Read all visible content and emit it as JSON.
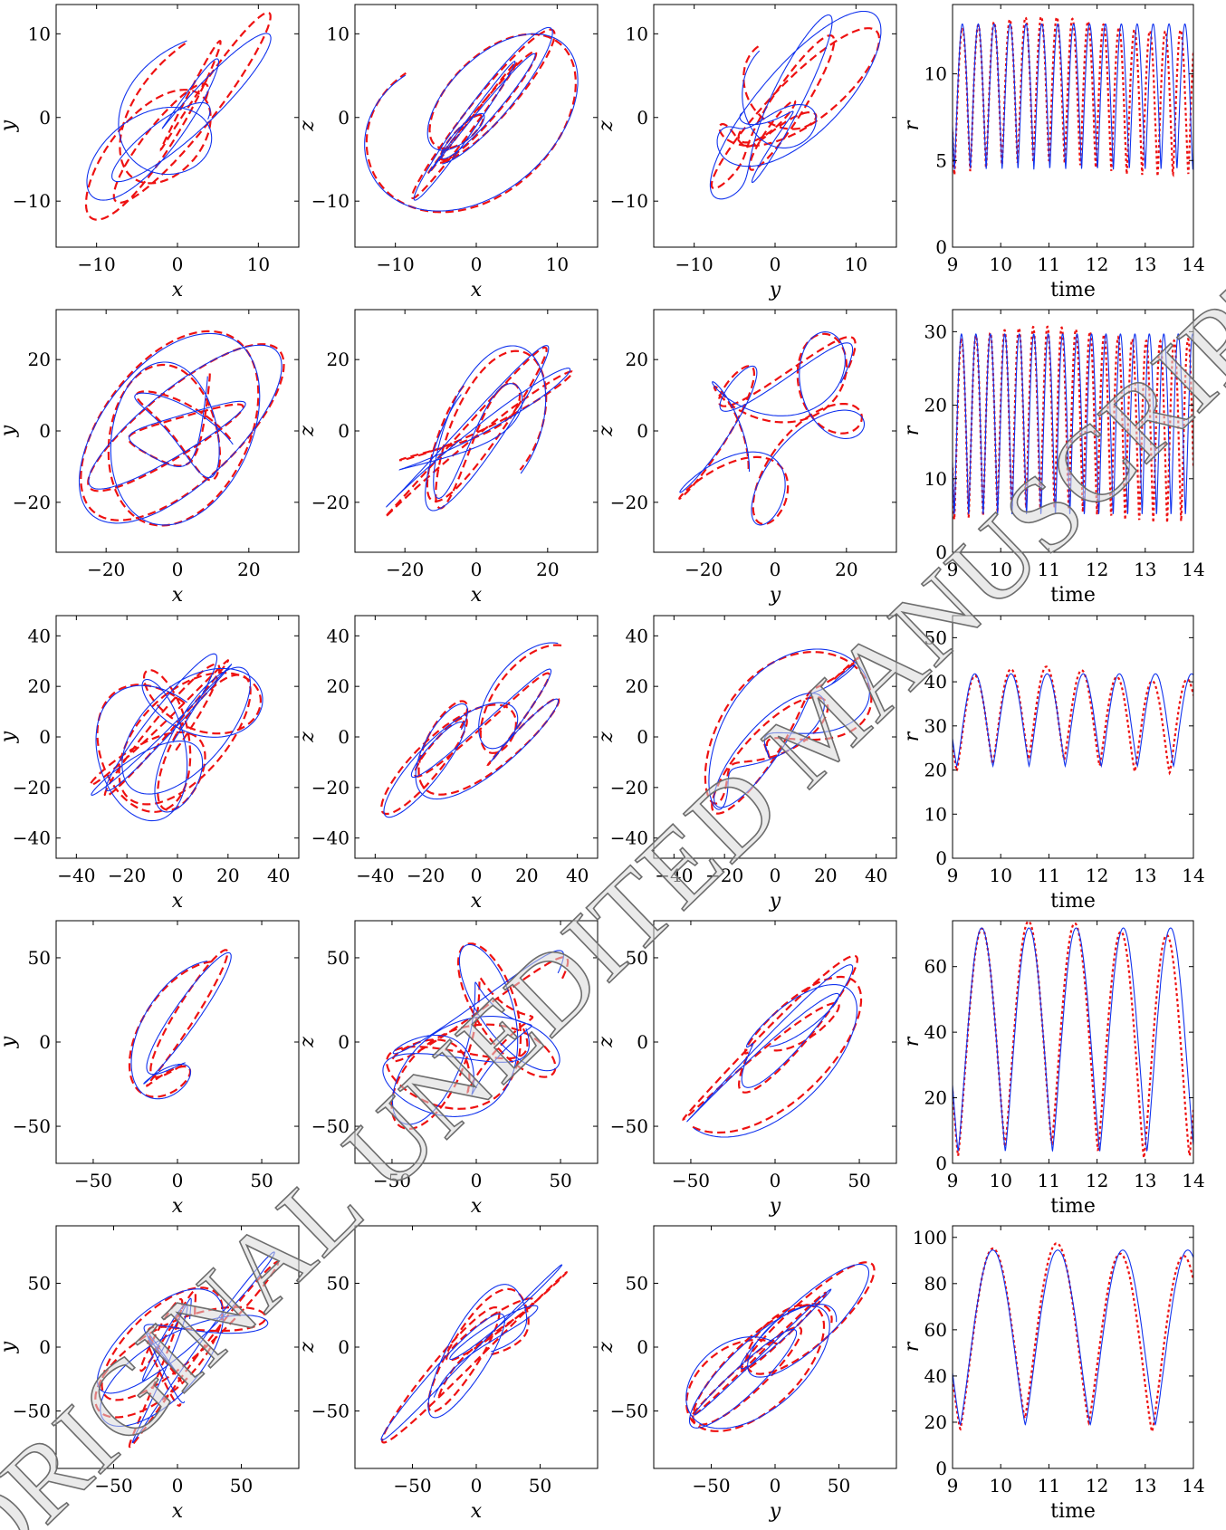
{
  "watermark": {
    "text": "ORIGINAL UNEDITED MANUSCRIPT"
  },
  "legend_colors": {
    "reference_dashed": "#ee1111",
    "model_solid": "#1133ee"
  },
  "chart_data": [
    {
      "type": "line",
      "row": 0,
      "kind": "orbit",
      "xlabel": "x",
      "ylabel": "y",
      "xlim": [
        -15,
        15
      ],
      "ylim": [
        -15.5,
        13.5
      ],
      "xticks": [
        -10,
        0,
        10
      ],
      "yticks": [
        -10,
        0,
        10
      ],
      "tick_labels_x": [
        "−10",
        "0",
        "10"
      ],
      "tick_labels_y": [
        "−10",
        "0",
        "10"
      ],
      "series": [
        {
          "style": "dashed-red"
        },
        {
          "style": "solid-blue"
        }
      ]
    },
    {
      "type": "line",
      "row": 0,
      "kind": "orbit",
      "xlabel": "x",
      "ylabel": "z",
      "xlim": [
        -15,
        15
      ],
      "ylim": [
        -15.5,
        13.5
      ],
      "xticks": [
        -10,
        0,
        10
      ],
      "yticks": [
        -10,
        0,
        10
      ],
      "tick_labels_x": [
        "−10",
        "0",
        "10"
      ],
      "tick_labels_y": [
        "−10",
        "0",
        "10"
      ],
      "series": [
        {
          "style": "dashed-red"
        },
        {
          "style": "solid-blue"
        }
      ]
    },
    {
      "type": "line",
      "row": 0,
      "kind": "orbit",
      "xlabel": "y",
      "ylabel": "z",
      "xlim": [
        -15,
        15
      ],
      "ylim": [
        -15.5,
        13.5
      ],
      "xticks": [
        -10,
        0,
        10
      ],
      "yticks": [
        -10,
        0,
        10
      ],
      "tick_labels_x": [
        "−10",
        "0",
        "10"
      ],
      "tick_labels_y": [
        "−10",
        "0",
        "10"
      ],
      "series": [
        {
          "style": "dashed-red"
        },
        {
          "style": "solid-blue"
        }
      ]
    },
    {
      "type": "line",
      "row": 0,
      "kind": "radius",
      "xlabel": "time",
      "ylabel": "r",
      "xlim": [
        9,
        14
      ],
      "ylim": [
        0,
        14
      ],
      "xticks": [
        9,
        10,
        11,
        12,
        13,
        14
      ],
      "yticks": [
        0,
        5,
        10
      ],
      "tick_labels_x": [
        "9",
        "10",
        "11",
        "12",
        "13",
        "14"
      ],
      "tick_labels_y": [
        "0",
        "5",
        "10"
      ],
      "series": [
        {
          "style": "dotted-red"
        },
        {
          "style": "solid-blue"
        }
      ]
    },
    {
      "type": "line",
      "row": 1,
      "kind": "orbit",
      "xlabel": "x",
      "ylabel": "y",
      "xlim": [
        -34,
        34
      ],
      "ylim": [
        -34,
        34
      ],
      "xticks": [
        -20,
        0,
        20
      ],
      "yticks": [
        -20,
        0,
        20
      ],
      "tick_labels_x": [
        "−20",
        "0",
        "20"
      ],
      "tick_labels_y": [
        "−20",
        "0",
        "20"
      ],
      "series": [
        {
          "style": "dashed-red"
        },
        {
          "style": "solid-blue"
        }
      ]
    },
    {
      "type": "line",
      "row": 1,
      "kind": "orbit",
      "xlabel": "x",
      "ylabel": "z",
      "xlim": [
        -34,
        34
      ],
      "ylim": [
        -34,
        34
      ],
      "xticks": [
        -20,
        0,
        20
      ],
      "yticks": [
        -20,
        0,
        20
      ],
      "tick_labels_x": [
        "−20",
        "0",
        "20"
      ],
      "tick_labels_y": [
        "−20",
        "0",
        "20"
      ],
      "series": [
        {
          "style": "dashed-red"
        },
        {
          "style": "solid-blue"
        }
      ]
    },
    {
      "type": "line",
      "row": 1,
      "kind": "orbit",
      "xlabel": "y",
      "ylabel": "z",
      "xlim": [
        -34,
        34
      ],
      "ylim": [
        -34,
        34
      ],
      "xticks": [
        -20,
        0,
        20
      ],
      "yticks": [
        -20,
        0,
        20
      ],
      "tick_labels_x": [
        "−20",
        "0",
        "20"
      ],
      "tick_labels_y": [
        "−20",
        "0",
        "20"
      ],
      "series": [
        {
          "style": "dashed-red"
        },
        {
          "style": "solid-blue"
        }
      ]
    },
    {
      "type": "line",
      "row": 1,
      "kind": "radius",
      "xlabel": "time",
      "ylabel": "r",
      "xlim": [
        9,
        14
      ],
      "ylim": [
        0,
        33
      ],
      "xticks": [
        9,
        10,
        11,
        12,
        13,
        14
      ],
      "yticks": [
        0,
        10,
        20,
        30
      ],
      "tick_labels_x": [
        "9",
        "10",
        "11",
        "12",
        "13",
        "14"
      ],
      "tick_labels_y": [
        "0",
        "10",
        "20",
        "30"
      ],
      "series": [
        {
          "style": "dotted-red"
        },
        {
          "style": "solid-blue"
        }
      ]
    },
    {
      "type": "line",
      "row": 2,
      "kind": "orbit",
      "xlabel": "x",
      "ylabel": "y",
      "xlim": [
        -48,
        48
      ],
      "ylim": [
        -48,
        48
      ],
      "xticks": [
        -40,
        -20,
        0,
        20,
        40
      ],
      "yticks": [
        -40,
        -20,
        0,
        20,
        40
      ],
      "tick_labels_x": [
        "−40",
        "−20",
        "0",
        "20",
        "40"
      ],
      "tick_labels_y": [
        "−40",
        "−20",
        "0",
        "20",
        "40"
      ],
      "series": [
        {
          "style": "dashed-red"
        },
        {
          "style": "solid-blue"
        }
      ]
    },
    {
      "type": "line",
      "row": 2,
      "kind": "orbit",
      "xlabel": "x",
      "ylabel": "z",
      "xlim": [
        -48,
        48
      ],
      "ylim": [
        -48,
        48
      ],
      "xticks": [
        -40,
        -20,
        0,
        20,
        40
      ],
      "yticks": [
        -40,
        -20,
        0,
        20,
        40
      ],
      "tick_labels_x": [
        "−40",
        "−20",
        "0",
        "20",
        "40"
      ],
      "tick_labels_y": [
        "−40",
        "−20",
        "0",
        "20",
        "40"
      ],
      "series": [
        {
          "style": "dashed-red"
        },
        {
          "style": "solid-blue"
        }
      ]
    },
    {
      "type": "line",
      "row": 2,
      "kind": "orbit",
      "xlabel": "y",
      "ylabel": "z",
      "xlim": [
        -48,
        48
      ],
      "ylim": [
        -48,
        48
      ],
      "xticks": [
        -40,
        -20,
        0,
        20,
        40
      ],
      "yticks": [
        -40,
        -20,
        0,
        20,
        40
      ],
      "tick_labels_x": [
        "−40",
        "−20",
        "0",
        "20",
        "40"
      ],
      "tick_labels_y": [
        "−40",
        "−20",
        "0",
        "20",
        "40"
      ],
      "series": [
        {
          "style": "dashed-red"
        },
        {
          "style": "solid-blue"
        }
      ]
    },
    {
      "type": "line",
      "row": 2,
      "kind": "radius",
      "xlabel": "time",
      "ylabel": "r",
      "xlim": [
        9,
        14
      ],
      "ylim": [
        0,
        55
      ],
      "xticks": [
        9,
        10,
        11,
        12,
        13,
        14
      ],
      "yticks": [
        0,
        10,
        20,
        30,
        40,
        50
      ],
      "tick_labels_x": [
        "9",
        "10",
        "11",
        "12",
        "13",
        "14"
      ],
      "tick_labels_y": [
        "0",
        "10",
        "20",
        "30",
        "40",
        "50"
      ],
      "series": [
        {
          "style": "dotted-red"
        },
        {
          "style": "solid-blue"
        }
      ]
    },
    {
      "type": "line",
      "row": 3,
      "kind": "orbit",
      "xlabel": "x",
      "ylabel": "y",
      "xlim": [
        -72,
        72
      ],
      "ylim": [
        -72,
        72
      ],
      "xticks": [
        -50,
        0,
        50
      ],
      "yticks": [
        -50,
        0,
        50
      ],
      "tick_labels_x": [
        "−50",
        "0",
        "50"
      ],
      "tick_labels_y": [
        "−50",
        "0",
        "50"
      ],
      "series": [
        {
          "style": "dashed-red"
        },
        {
          "style": "solid-blue"
        }
      ]
    },
    {
      "type": "line",
      "row": 3,
      "kind": "orbit",
      "xlabel": "x",
      "ylabel": "z",
      "xlim": [
        -72,
        72
      ],
      "ylim": [
        -72,
        72
      ],
      "xticks": [
        -50,
        0,
        50
      ],
      "yticks": [
        -50,
        0,
        50
      ],
      "tick_labels_x": [
        "−50",
        "0",
        "50"
      ],
      "tick_labels_y": [
        "−50",
        "0",
        "50"
      ],
      "series": [
        {
          "style": "dashed-red"
        },
        {
          "style": "solid-blue"
        }
      ]
    },
    {
      "type": "line",
      "row": 3,
      "kind": "orbit",
      "xlabel": "y",
      "ylabel": "z",
      "xlim": [
        -72,
        72
      ],
      "ylim": [
        -72,
        72
      ],
      "xticks": [
        -50,
        0,
        50
      ],
      "yticks": [
        -50,
        0,
        50
      ],
      "tick_labels_x": [
        "−50",
        "0",
        "50"
      ],
      "tick_labels_y": [
        "−50",
        "0",
        "50"
      ],
      "series": [
        {
          "style": "dashed-red"
        },
        {
          "style": "solid-blue"
        }
      ]
    },
    {
      "type": "line",
      "row": 3,
      "kind": "radius",
      "xlabel": "time",
      "ylabel": "r",
      "xlim": [
        9,
        14
      ],
      "ylim": [
        0,
        74
      ],
      "xticks": [
        9,
        10,
        11,
        12,
        13,
        14
      ],
      "yticks": [
        0,
        20,
        40,
        60
      ],
      "tick_labels_x": [
        "9",
        "10",
        "11",
        "12",
        "13",
        "14"
      ],
      "tick_labels_y": [
        "0",
        "20",
        "40",
        "60"
      ],
      "series": [
        {
          "style": "dotted-red"
        },
        {
          "style": "solid-blue"
        }
      ]
    },
    {
      "type": "line",
      "row": 4,
      "kind": "orbit",
      "xlabel": "x",
      "ylabel": "y",
      "xlim": [
        -95,
        95
      ],
      "ylim": [
        -95,
        95
      ],
      "xticks": [
        -50,
        0,
        50
      ],
      "yticks": [
        -50,
        0,
        50
      ],
      "tick_labels_x": [
        "−50",
        "0",
        "50"
      ],
      "tick_labels_y": [
        "−50",
        "0",
        "50"
      ],
      "series": [
        {
          "style": "dashed-red"
        },
        {
          "style": "solid-blue"
        }
      ]
    },
    {
      "type": "line",
      "row": 4,
      "kind": "orbit",
      "xlabel": "x",
      "ylabel": "z",
      "xlim": [
        -95,
        95
      ],
      "ylim": [
        -95,
        95
      ],
      "xticks": [
        -50,
        0,
        50
      ],
      "yticks": [
        -50,
        0,
        50
      ],
      "tick_labels_x": [
        "−50",
        "0",
        "50"
      ],
      "tick_labels_y": [
        "−50",
        "0",
        "50"
      ],
      "series": [
        {
          "style": "dashed-red"
        },
        {
          "style": "solid-blue"
        }
      ]
    },
    {
      "type": "line",
      "row": 4,
      "kind": "orbit",
      "xlabel": "y",
      "ylabel": "z",
      "xlim": [
        -95,
        95
      ],
      "ylim": [
        -95,
        95
      ],
      "xticks": [
        -50,
        0,
        50
      ],
      "yticks": [
        -50,
        0,
        50
      ],
      "tick_labels_x": [
        "−50",
        "0",
        "50"
      ],
      "tick_labels_y": [
        "−50",
        "0",
        "50"
      ],
      "series": [
        {
          "style": "dashed-red"
        },
        {
          "style": "solid-blue"
        }
      ]
    },
    {
      "type": "line",
      "row": 4,
      "kind": "radius",
      "xlabel": "time",
      "ylabel": "r",
      "xlim": [
        9,
        14
      ],
      "ylim": [
        0,
        105
      ],
      "xticks": [
        9,
        10,
        11,
        12,
        13,
        14
      ],
      "yticks": [
        0,
        20,
        40,
        60,
        80,
        100
      ],
      "tick_labels_x": [
        "9",
        "10",
        "11",
        "12",
        "13",
        "14"
      ],
      "tick_labels_y": [
        "0",
        "20",
        "40",
        "60",
        "80",
        "100"
      ],
      "series": [
        {
          "style": "dotted-red"
        },
        {
          "style": "solid-blue"
        }
      ]
    }
  ]
}
